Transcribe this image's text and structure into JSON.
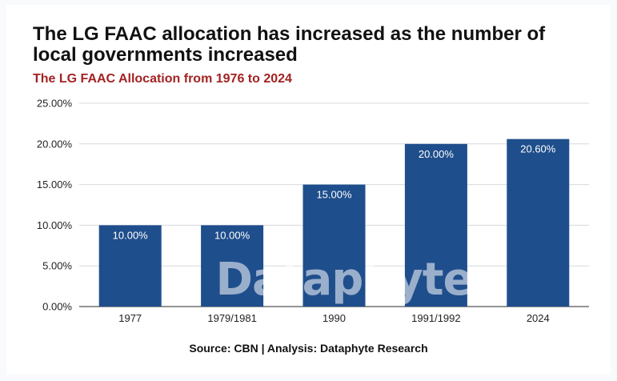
{
  "header": {
    "title": "The LG FAAC allocation has increased as the number of local governments increased",
    "subtitle": "The LG FAAC Allocation from 1976 to 2024"
  },
  "footer": {
    "source": "Source: CBN | Analysis: Dataphyte Research"
  },
  "watermark": "Dataphyte",
  "colors": {
    "bar": "#1f4e8c",
    "subtitle": "#a32222",
    "grid": "#d5d9de"
  },
  "chart_data": {
    "type": "bar",
    "categories": [
      "1977",
      "1979/1981",
      "1990",
      "1991/1992",
      "2024"
    ],
    "values": [
      10.0,
      10.0,
      15.0,
      20.0,
      20.6
    ],
    "data_labels": [
      "10.00%",
      "10.00%",
      "15.00%",
      "20.00%",
      "20.60%"
    ],
    "ylim": [
      0,
      25
    ],
    "yticks": [
      0,
      5,
      10,
      15,
      20,
      25
    ],
    "ytick_labels": [
      "0.00%",
      "5.00%",
      "10.00%",
      "15.00%",
      "20.00%",
      "25.00%"
    ],
    "grid": true,
    "legend": "none"
  }
}
